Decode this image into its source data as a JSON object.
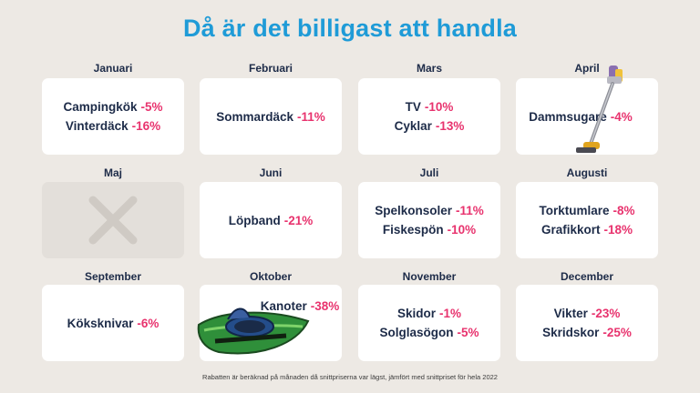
{
  "title": "Då är det billigast att handla",
  "footnote": "Rabatten är beräknad på månaden då snittpriserna var lägst, jämfört med snittpriset för hela 2022",
  "accent_color": "#e8336e",
  "title_color": "#1f9bd7",
  "months": [
    {
      "name": "Januari",
      "items": [
        {
          "label": "Campingkök",
          "pct": "-5%"
        },
        {
          "label": "Vinterdäck",
          "pct": "-16%"
        }
      ]
    },
    {
      "name": "Februari",
      "items": [
        {
          "label": "Sommardäck",
          "pct": "-11%"
        }
      ]
    },
    {
      "name": "Mars",
      "items": [
        {
          "label": "TV",
          "pct": "-10%"
        },
        {
          "label": "Cyklar",
          "pct": "-13%"
        }
      ]
    },
    {
      "name": "April",
      "items": [
        {
          "label": "Dammsugare",
          "pct": "-4%"
        }
      ],
      "image": "vacuum-cleaner-image"
    },
    {
      "name": "Maj",
      "items": [],
      "empty_icon": "x-mark-icon"
    },
    {
      "name": "Juni",
      "items": [
        {
          "label": "Löpband",
          "pct": "-21%"
        }
      ]
    },
    {
      "name": "Juli",
      "items": [
        {
          "label": "Spelkonsoler",
          "pct": "-11%"
        },
        {
          "label": "Fiskespön",
          "pct": "-10%"
        }
      ]
    },
    {
      "name": "Augusti",
      "items": [
        {
          "label": "Torktumlare",
          "pct": "-8%"
        },
        {
          "label": "Grafikkort",
          "pct": "-18%"
        }
      ]
    },
    {
      "name": "September",
      "items": [
        {
          "label": "Köksknivar",
          "pct": "-6%"
        }
      ]
    },
    {
      "name": "Oktober",
      "items": [
        {
          "label": "Kanoter",
          "pct": "-38%"
        }
      ],
      "image": "kayak-image"
    },
    {
      "name": "November",
      "items": [
        {
          "label": "Skidor",
          "pct": "-1%"
        },
        {
          "label": "Solglasögon",
          "pct": "-5%"
        }
      ]
    },
    {
      "name": "December",
      "items": [
        {
          "label": "Vikter",
          "pct": "-23%"
        },
        {
          "label": "Skridskor",
          "pct": "-25%"
        }
      ]
    }
  ]
}
